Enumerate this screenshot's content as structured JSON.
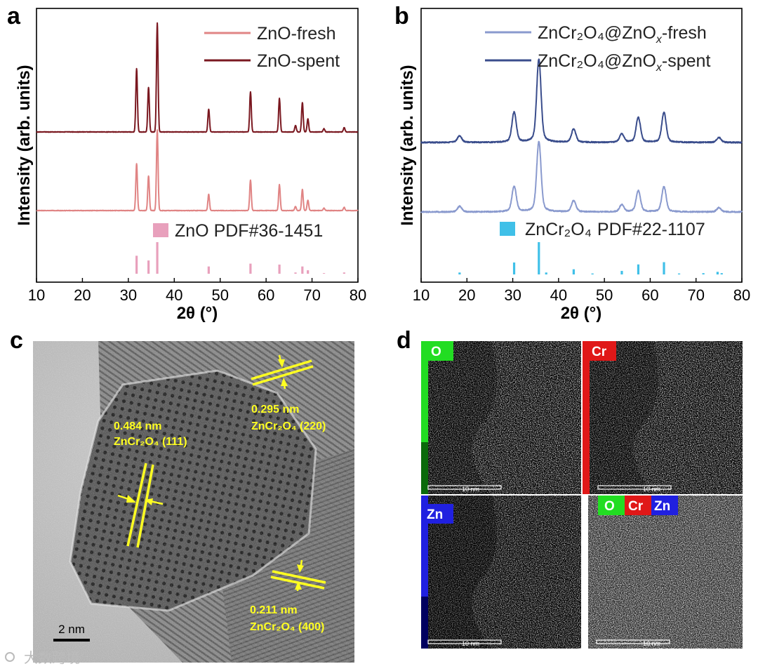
{
  "panels": {
    "a": {
      "letter": "a",
      "ylabel": "Intensity (arb. units)",
      "xlabel": "2θ (°)",
      "reference_label": "ZnO PDF#36-1451",
      "legend": [
        {
          "name": "ZnO-fresh",
          "color": "#e08484"
        },
        {
          "name": "ZnO-spent",
          "color": "#7a1820"
        }
      ]
    },
    "b": {
      "letter": "b",
      "ylabel": "Intensity (arb. units)",
      "xlabel": "2θ (°)",
      "legend_base": "ZnCr₂O₄@ZnO",
      "legend_sub": "x",
      "legend_suffixes": [
        "-fresh",
        "-spent"
      ],
      "legend_colors": [
        "#8a9ace",
        "#3a4d8c"
      ],
      "reference_formula": "ZnCr₂O₄",
      "reference_pdf": "PDF#22-1107"
    },
    "c": {
      "letter": "c",
      "annotations": {
        "d1_spacing": "0.484 nm",
        "d1_plane": "ZnCr₂O₄ (111)",
        "d2_spacing": "0.295 nm",
        "d2_plane": "ZnCr₂O₄ (220)",
        "d3_spacing": "0.211 nm",
        "d3_plane": "ZnCr₂O₄ (400)"
      },
      "scale_bar": "2 nm"
    },
    "d": {
      "letter": "d",
      "maps": [
        {
          "label": "O",
          "color": "#22dd22"
        },
        {
          "label": "Cr",
          "color": "#e01818"
        },
        {
          "label": "Zn",
          "color": "#2020e0"
        }
      ],
      "scale_bar": "10 nm"
    }
  },
  "watermark": "大数跨境",
  "chart_data": [
    {
      "type": "line",
      "panel": "a",
      "xlabel": "2θ (°)",
      "ylabel": "Intensity (arb. units)",
      "xlim": [
        10,
        80
      ],
      "xticks": [
        10,
        20,
        30,
        40,
        50,
        60,
        70,
        80
      ],
      "series": [
        {
          "name": "ZnO-spent",
          "color": "#7a1820",
          "peaks": [
            [
              31.8,
              0.58
            ],
            [
              34.4,
              0.41
            ],
            [
              36.3,
              1.0
            ],
            [
              47.5,
              0.21
            ],
            [
              56.6,
              0.37
            ],
            [
              62.9,
              0.31
            ],
            [
              66.4,
              0.06
            ],
            [
              67.9,
              0.27
            ],
            [
              69.1,
              0.12
            ],
            [
              72.6,
              0.03
            ],
            [
              77.0,
              0.04
            ]
          ]
        },
        {
          "name": "ZnO-fresh",
          "color": "#e08484",
          "peaks": [
            [
              31.8,
              0.58
            ],
            [
              34.4,
              0.43
            ],
            [
              36.3,
              1.0
            ],
            [
              47.5,
              0.2
            ],
            [
              56.6,
              0.38
            ],
            [
              62.9,
              0.32
            ],
            [
              66.4,
              0.05
            ],
            [
              67.9,
              0.26
            ],
            [
              69.1,
              0.13
            ],
            [
              72.6,
              0.03
            ],
            [
              77.0,
              0.04
            ]
          ]
        }
      ],
      "reference": {
        "name": "ZnO PDF#36-1451",
        "color": "#e8a0bc",
        "sticks": [
          [
            31.8,
            0.57
          ],
          [
            34.4,
            0.42
          ],
          [
            36.3,
            1.0
          ],
          [
            47.5,
            0.23
          ],
          [
            56.6,
            0.32
          ],
          [
            62.9,
            0.29
          ],
          [
            66.4,
            0.04
          ],
          [
            67.9,
            0.23
          ],
          [
            69.1,
            0.11
          ],
          [
            72.6,
            0.02
          ],
          [
            77.0,
            0.04
          ]
        ]
      }
    },
    {
      "type": "line",
      "panel": "b",
      "xlabel": "2θ (°)",
      "ylabel": "Intensity (arb. units)",
      "xlim": [
        10,
        80
      ],
      "xticks": [
        10,
        20,
        30,
        40,
        50,
        60,
        70,
        80
      ],
      "series": [
        {
          "name": "ZnCr₂O₄@ZnOx-spent",
          "color": "#3a4d8c",
          "peaks": [
            [
              18.4,
              0.08
            ],
            [
              30.3,
              0.36
            ],
            [
              35.7,
              1.0
            ],
            [
              43.3,
              0.16
            ],
            [
              53.8,
              0.1
            ],
            [
              57.4,
              0.3
            ],
            [
              63.0,
              0.36
            ],
            [
              75.0,
              0.06
            ]
          ]
        },
        {
          "name": "ZnCr₂O₄@ZnOx-fresh",
          "color": "#8a9ace",
          "peaks": [
            [
              18.4,
              0.08
            ],
            [
              30.3,
              0.36
            ],
            [
              35.7,
              1.0
            ],
            [
              43.3,
              0.16
            ],
            [
              53.8,
              0.1
            ],
            [
              57.4,
              0.3
            ],
            [
              63.0,
              0.36
            ],
            [
              75.0,
              0.06
            ]
          ]
        }
      ],
      "reference": {
        "name": "ZnCr₂O₄ PDF#22-1107",
        "color": "#40c0e8",
        "sticks": [
          [
            18.4,
            0.06
          ],
          [
            30.3,
            0.37
          ],
          [
            35.7,
            1.0
          ],
          [
            37.3,
            0.06
          ],
          [
            43.3,
            0.16
          ],
          [
            47.4,
            0.03
          ],
          [
            53.8,
            0.11
          ],
          [
            57.4,
            0.31
          ],
          [
            63.0,
            0.38
          ],
          [
            66.3,
            0.03
          ],
          [
            71.6,
            0.04
          ],
          [
            74.7,
            0.08
          ],
          [
            75.6,
            0.04
          ]
        ]
      }
    }
  ]
}
